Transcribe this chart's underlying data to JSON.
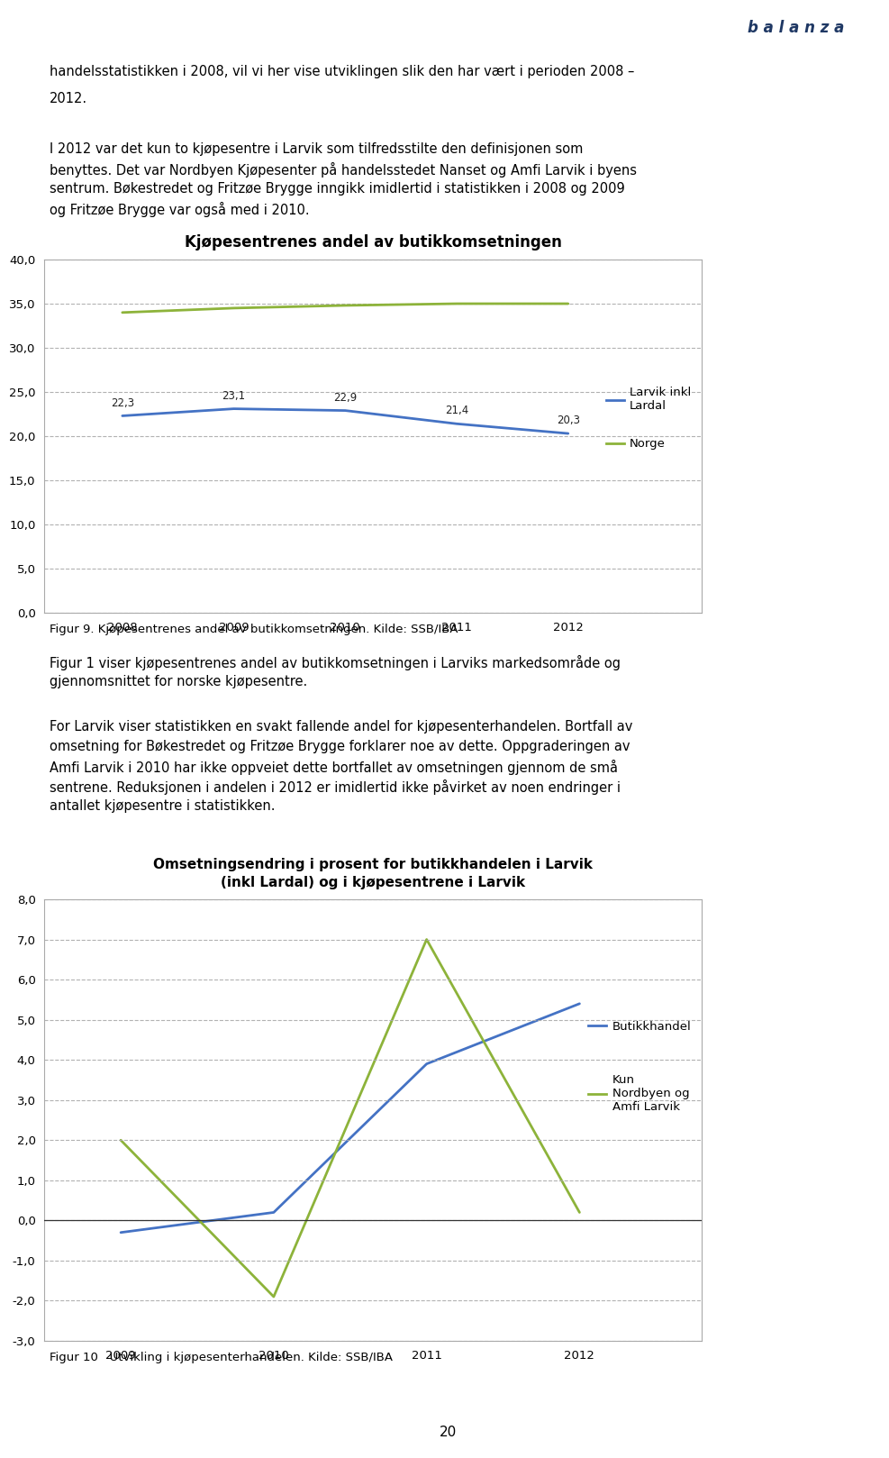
{
  "line1": "handelsstatistikken i 2008, vil vi her vise utviklingen slik den har vært i perioden 2008 –",
  "line2": "2012.",
  "para1_lines": [
    "I 2012 var det kun to kjøpesentre i Larvik som tilfredsstilte den definisjonen som",
    "benyttes. Det var Nordbyen Kjøpesenter på handelsstedet Nanset og Amfi Larvik i byens",
    "sentrum. Bøkestredet og Fritzøe Brygge inngikk imidlertid i statistikken i 2008 og 2009",
    "og Fritzøe Brygge var også med i 2010."
  ],
  "chart1_title": "Kjøpesentrenes andel av butikkomsetningen",
  "chart1_years": [
    2008,
    2009,
    2010,
    2011,
    2012
  ],
  "chart1_larvik": [
    22.3,
    23.1,
    22.9,
    21.4,
    20.3
  ],
  "chart1_norge": [
    34.0,
    34.5,
    34.8,
    35.0,
    35.0
  ],
  "chart1_ylim": [
    0.0,
    40.0
  ],
  "chart1_yticks": [
    0.0,
    5.0,
    10.0,
    15.0,
    20.0,
    25.0,
    30.0,
    35.0,
    40.0
  ],
  "chart1_larvik_color": "#4472C4",
  "chart1_norge_color": "#8DB33A",
  "chart1_legend1": "Larvik inkl\nLardal",
  "chart1_legend2": "Norge",
  "chart1_caption": "Figur 9. Kjøpesentrenes andel av butikkomsetningen. Kilde: SSB/IBA",
  "para2_lines": [
    "Figur 1 viser kjøpesentrenes andel av butikkomsetningen i Larviks markedsområde og",
    "gjennomsnittet for norske kjøpesentre."
  ],
  "para3_lines": [
    "For Larvik viser statistikken en svakt fallende andel for kjøpesenterhandelen. Bortfall av",
    "omsetning for Bøkestredet og Fritzøe Brygge forklarer noe av dette. Oppgraderingen av",
    "Amfi Larvik i 2010 har ikke oppveiet dette bortfallet av omsetningen gjennom de små",
    "sentrene. Reduksjonen i andelen i 2012 er imidlertid ikke påvirket av noen endringer i",
    "antallet kjøpesentre i statistikken."
  ],
  "chart2_title_line1": "Omsetningsendring i prosent for butikkhandelen i Larvik",
  "chart2_title_line2": "(inkl Lardal) og i kjøpesentrene i Larvik",
  "chart2_years": [
    2009,
    2010,
    2011,
    2012
  ],
  "chart2_butikk": [
    -0.3,
    0.2,
    3.9,
    5.4
  ],
  "chart2_kun": [
    2.0,
    -1.9,
    7.0,
    0.2
  ],
  "chart2_ylim": [
    -3.0,
    8.0
  ],
  "chart2_yticks": [
    -3.0,
    -2.0,
    -1.0,
    0.0,
    1.0,
    2.0,
    3.0,
    4.0,
    5.0,
    6.0,
    7.0,
    8.0
  ],
  "chart2_butikk_color": "#4472C4",
  "chart2_kun_color": "#8DB33A",
  "chart2_legend1": "Butikkhandel",
  "chart2_legend2": "Kun\nNordbyen og\nAmfi Larvik",
  "chart2_caption": "Figur 10   Utvikling i kjøpesenterhandelen. Kilde: SSB/IBA",
  "page_number": "20",
  "logo_text": "b a l a n z a",
  "logo_color": "#1F3864",
  "background_color": "#FFFFFF",
  "text_color": "#000000",
  "grid_color": "#AAAAAA",
  "spine_color": "#AAAAAA",
  "text_fontsize": 10.5,
  "caption_fontsize": 9.5
}
